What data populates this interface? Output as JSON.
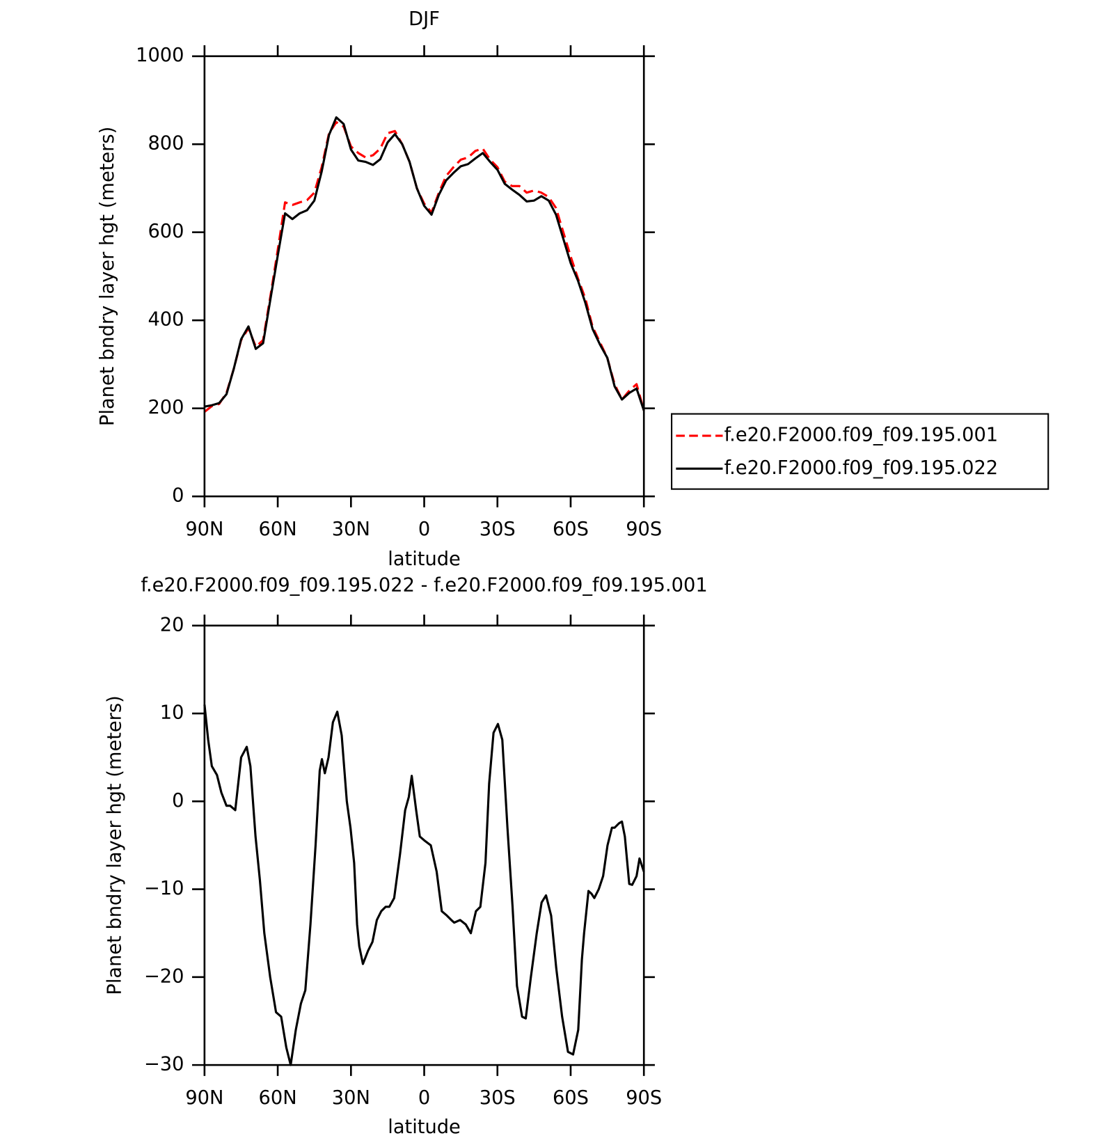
{
  "chart_data": [
    {
      "type": "line",
      "title": "DJF",
      "xlabel": "latitude",
      "ylabel": "Planet bndry layer hgt (meters)",
      "xlim": [
        90,
        -90
      ],
      "ylim": [
        0,
        1000
      ],
      "xticks": [
        {
          "value": 90,
          "label": "90N"
        },
        {
          "value": 60,
          "label": "60N"
        },
        {
          "value": 30,
          "label": "30N"
        },
        0,
        {
          "value": -30,
          "label": "30S"
        },
        {
          "value": -60,
          "label": "60S"
        },
        {
          "value": -90,
          "label": "90S"
        }
      ],
      "yticks": [
        0,
        200,
        400,
        600,
        800,
        1000
      ],
      "legend": "right",
      "x": [
        90,
        87,
        84,
        81,
        78,
        75,
        72,
        69,
        66,
        63,
        60,
        57,
        54,
        51,
        48,
        45,
        42,
        39,
        36,
        33,
        30,
        27,
        24,
        21,
        18,
        15,
        12,
        9,
        6,
        3,
        0,
        -3,
        -6,
        -9,
        -12,
        -15,
        -18,
        -21,
        -24,
        -27,
        -30,
        -33,
        -36,
        -39,
        -42,
        -45,
        -48,
        -51,
        -54,
        -57,
        -60,
        -63,
        -66,
        -69,
        -72,
        -75,
        -78,
        -81,
        -84,
        -87,
        -90
      ],
      "series": [
        {
          "name": "f.e20.F2000.f09_f09.195.001",
          "color": "#ff0000",
          "dashed": true,
          "values": [
            192,
            205,
            210,
            235,
            290,
            355,
            382,
            340,
            355,
            455,
            560,
            668,
            662,
            668,
            673,
            690,
            748,
            825,
            850,
            840,
            795,
            780,
            770,
            775,
            790,
            825,
            830,
            800,
            760,
            700,
            665,
            645,
            690,
            728,
            748,
            765,
            770,
            785,
            790,
            765,
            748,
            715,
            705,
            705,
            690,
            695,
            690,
            680,
            655,
            600,
            545,
            495,
            450,
            385,
            350,
            315,
            255,
            220,
            240,
            255,
            195
          ]
        },
        {
          "name": "f.e20.F2000.f09_f09.195.022",
          "color": "#000000",
          "dashed": false,
          "values": [
            204,
            207,
            212,
            232,
            290,
            357,
            386,
            335,
            348,
            448,
            547,
            643,
            630,
            643,
            650,
            672,
            738,
            821,
            861,
            846,
            788,
            763,
            760,
            753,
            766,
            804,
            823,
            800,
            760,
            700,
            660,
            640,
            685,
            718,
            735,
            750,
            755,
            768,
            780,
            760,
            742,
            710,
            697,
            685,
            670,
            672,
            682,
            672,
            640,
            585,
            530,
            490,
            440,
            380,
            345,
            315,
            250,
            220,
            235,
            245,
            195
          ]
        }
      ]
    },
    {
      "type": "line",
      "title": "f.e20.F2000.f09_f09.195.022 - f.e20.F2000.f09_f09.195.001",
      "xlabel": "latitude",
      "ylabel": "Planet bndry layer hgt (meters)",
      "xlim": [
        90,
        -90
      ],
      "ylim": [
        -30,
        20
      ],
      "xticks": [
        {
          "value": 90,
          "label": "90N"
        },
        {
          "value": 60,
          "label": "60N"
        },
        {
          "value": 30,
          "label": "30N"
        },
        0,
        {
          "value": -30,
          "label": "30S"
        },
        {
          "value": -60,
          "label": "60S"
        },
        {
          "value": -90,
          "label": "90S"
        }
      ],
      "yticks": [
        {
          "value": -30,
          "label": "−30"
        },
        {
          "value": -20,
          "label": "−20"
        },
        {
          "value": -10,
          "label": "−10"
        },
        0,
        10,
        20
      ],
      "x": [
        90,
        88.5,
        87,
        84.9,
        83.1,
        81,
        79.5,
        77.4,
        75,
        72.7,
        71.2,
        69.1,
        67.3,
        65.5,
        63.1,
        60.7,
        58.6,
        56.5,
        54.7,
        52.6,
        50.5,
        48.7,
        46.6,
        44.5,
        42.8,
        41.9,
        40.7,
        39.2,
        37.4,
        35.6,
        33.8,
        31.7,
        30.2,
        28.7,
        27.5,
        26.6,
        25.1,
        23,
        21.2,
        19.4,
        17.6,
        15.8,
        14.3,
        12.3,
        9.9,
        7.8,
        6.3,
        5.1,
        3.3,
        1.8,
        -0.3,
        -2.7,
        -5.1,
        -7.2,
        -9.3,
        -11.1,
        -12.3,
        -14.7,
        -17,
        -19.1,
        -21.2,
        -23,
        -25.1,
        -26.6,
        -28.4,
        -30.2,
        -32,
        -34.1,
        -36.2,
        -38,
        -40.1,
        -41.6,
        -43.7,
        -46.1,
        -48.1,
        -49.9,
        -52,
        -54.1,
        -56.5,
        -58.9,
        -61,
        -63.1,
        -64.6,
        -65.5,
        -67.3,
        -68.5,
        -69.7,
        -71.5,
        -73.3,
        -75.1,
        -76.9,
        -78,
        -79.8,
        -81,
        -82.2,
        -84,
        -85.2,
        -87,
        -88.2,
        -90
      ],
      "color": "#000000",
      "values": [
        11,
        7,
        4,
        3,
        1,
        -0.5,
        -0.5,
        -1,
        5,
        6.2,
        4,
        -4,
        -9,
        -15,
        -20,
        -24,
        -24.5,
        -28,
        -30,
        -26,
        -23,
        -21.5,
        -14,
        -5,
        3.5,
        4.8,
        3.2,
        5,
        9,
        10.2,
        7.5,
        0,
        -3,
        -7,
        -14,
        -16.5,
        -18.5,
        -17,
        -16,
        -13.5,
        -12.5,
        -12,
        -12,
        -11,
        -6,
        -1,
        0.5,
        2.9,
        -1,
        -4,
        -4.5,
        -5,
        -8,
        -12.5,
        -13,
        -13.5,
        -13.8,
        -13.5,
        -14,
        -15,
        -12.5,
        -12,
        -7,
        2,
        7.8,
        8.8,
        7,
        -3,
        -12,
        -21,
        -24.5,
        -24.7,
        -20,
        -15,
        -11.5,
        -10.7,
        -13,
        -19,
        -24.5,
        -28.5,
        -28.8,
        -26,
        -18,
        -15,
        -10.2,
        -10.5,
        -11,
        -10,
        -8.5,
        -5,
        -3,
        -3,
        -2.5,
        -2.3,
        -4,
        -9.4,
        -9.5,
        -8.5,
        -6.5,
        -8
      ]
    }
  ]
}
